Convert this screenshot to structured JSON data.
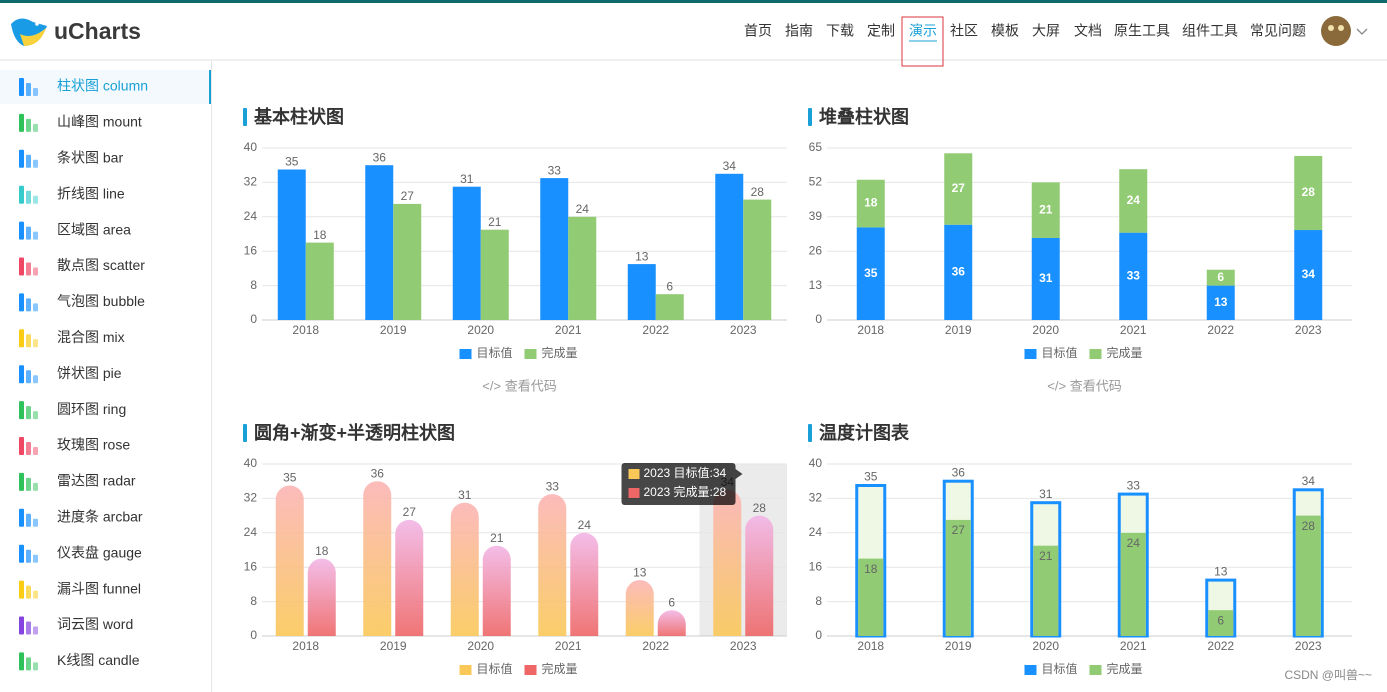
{
  "header": {
    "logo": "uCharts",
    "nav": [
      "首页",
      "指南",
      "下载",
      "定制",
      "演示",
      "社区",
      "模板",
      "大屏",
      "文档",
      "原生工具",
      "组件工具",
      "常见问题"
    ],
    "active_nav": 4
  },
  "sidebar": {
    "items": [
      "柱状图 column",
      "山峰图 mount",
      "条状图 bar",
      "折线图 line",
      "区域图 area",
      "散点图 scatter",
      "气泡图 bubble",
      "混合图 mix",
      "饼状图 pie",
      "圆环图 ring",
      "玫瑰图 rose",
      "雷达图 radar",
      "进度条 arcbar",
      "仪表盘 gauge",
      "漏斗图 funnel",
      "词云图 word",
      "K线图 candle"
    ],
    "active": 0
  },
  "chart_data": [
    {
      "type": "bar",
      "title": "基本柱状图",
      "categories": [
        "2018",
        "2019",
        "2020",
        "2021",
        "2022",
        "2023"
      ],
      "series": [
        {
          "name": "目标值",
          "color": "#1890FF",
          "values": [
            35,
            36,
            31,
            33,
            13,
            34
          ]
        },
        {
          "name": "完成量",
          "color": "#91CB74",
          "values": [
            18,
            27,
            21,
            24,
            6,
            28
          ]
        }
      ],
      "ylim": [
        0,
        40
      ],
      "yticks": [
        0,
        8,
        16,
        24,
        32,
        40
      ],
      "grid": true,
      "style": "group",
      "view_code": "</> 查看代码"
    },
    {
      "type": "bar",
      "title": "堆叠柱状图",
      "categories": [
        "2018",
        "2019",
        "2020",
        "2021",
        "2022",
        "2023"
      ],
      "series": [
        {
          "name": "目标值",
          "color": "#1890FF",
          "values": [
            35,
            36,
            31,
            33,
            13,
            34
          ]
        },
        {
          "name": "完成量",
          "color": "#91CB74",
          "values": [
            18,
            27,
            21,
            24,
            6,
            28
          ]
        }
      ],
      "ylim": [
        0,
        65
      ],
      "yticks": [
        0,
        13,
        26,
        39,
        52,
        65
      ],
      "grid": true,
      "style": "stack",
      "view_code": "</> 查看代码"
    },
    {
      "type": "bar",
      "title": "圆角+渐变+半透明柱状图",
      "categories": [
        "2018",
        "2019",
        "2020",
        "2021",
        "2022",
        "2023"
      ],
      "series": [
        {
          "name": "目标值",
          "color": "#FAC858",
          "color_top": "#FBB4B4",
          "values": [
            35,
            36,
            31,
            33,
            13,
            34
          ]
        },
        {
          "name": "完成量",
          "color": "#EE6666",
          "color_top": "#F2B6E6",
          "values": [
            18,
            27,
            21,
            24,
            6,
            28
          ]
        }
      ],
      "ylim": [
        0,
        40
      ],
      "yticks": [
        0,
        8,
        16,
        24,
        32,
        40
      ],
      "grid": true,
      "style": "rounded",
      "tooltip": {
        "index": 5,
        "lines": [
          "2023 目标值:34",
          "2023 完成量:28"
        ]
      }
    },
    {
      "type": "bar",
      "title": "温度计图表",
      "categories": [
        "2018",
        "2019",
        "2020",
        "2021",
        "2022",
        "2023"
      ],
      "series": [
        {
          "name": "目标值",
          "color": "#1890FF",
          "values": [
            35,
            36,
            31,
            33,
            13,
            34
          ]
        },
        {
          "name": "完成量",
          "color": "#91CB74",
          "values": [
            18,
            27,
            21,
            24,
            6,
            28
          ]
        }
      ],
      "ylim": [
        0,
        40
      ],
      "yticks": [
        0,
        8,
        16,
        24,
        32,
        40
      ],
      "grid": true,
      "style": "thermometer"
    }
  ],
  "watermark": "CSDN @叫兽~~"
}
